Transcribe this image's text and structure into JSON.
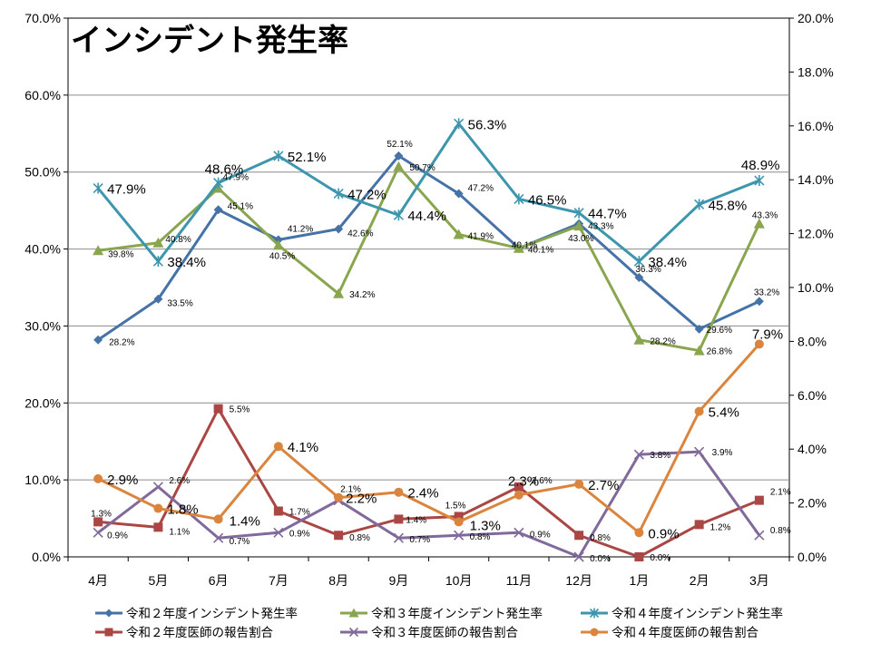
{
  "chart_data": {
    "type": "line",
    "title": "インシデント発生率",
    "categories": [
      "4月",
      "5月",
      "6月",
      "7月",
      "8月",
      "9月",
      "10月",
      "11月",
      "12月",
      "1月",
      "2月",
      "3月"
    ],
    "ylim": [
      0,
      70
    ],
    "y2lim": [
      0,
      20
    ],
    "yticks": [
      "0.0%",
      "10.0%",
      "20.0%",
      "30.0%",
      "40.0%",
      "50.0%",
      "60.0%",
      "70.0%"
    ],
    "y2ticks": [
      "0.0%",
      "2.0%",
      "4.0%",
      "6.0%",
      "8.0%",
      "10.0%",
      "12.0%",
      "14.0%",
      "16.0%",
      "18.0%",
      "20.0%"
    ],
    "grid": true,
    "legend_position": "bottom",
    "series": [
      {
        "name": "令和２年度インシデント発生率",
        "axis": "left",
        "color": "#4572A7",
        "marker": "diamond",
        "values": [
          28.2,
          33.5,
          45.1,
          41.2,
          42.6,
          52.1,
          47.2,
          40.1,
          43.3,
          36.3,
          29.6,
          33.2
        ],
        "labels": [
          "28.2%",
          "33.5%",
          "45.1%",
          "41.2%",
          "42.6%",
          "52.1%",
          "47.2%",
          "40.1%",
          "43.3%",
          "36.3%",
          "29.6%",
          "33.2%"
        ]
      },
      {
        "name": "令和３年度インシデント発生率",
        "axis": "left",
        "color": "#89A54E",
        "marker": "triangle",
        "values": [
          39.8,
          40.8,
          47.9,
          40.5,
          34.2,
          50.7,
          41.9,
          40.1,
          43.0,
          28.2,
          26.8,
          43.3
        ],
        "labels": [
          "39.8%",
          "40.8%",
          "47.9%",
          "40.5%",
          "34.2%",
          "50.7%",
          "41.9%",
          "40.1%",
          "43.0%",
          "28.2%",
          "26.8%",
          "43.3%"
        ]
      },
      {
        "name": "令和４年度インシデント発生率",
        "axis": "left",
        "color": "#3D96AE",
        "marker": "star",
        "values": [
          47.9,
          38.4,
          48.6,
          52.1,
          47.2,
          44.4,
          56.3,
          46.5,
          44.7,
          38.4,
          45.8,
          48.9
        ],
        "labels": [
          "47.9%",
          "38.4%",
          "48.6%",
          "52.1%",
          "47.2%",
          "44.4%",
          "56.3%",
          "46.5%",
          "44.7%",
          "38.4%",
          "45.8%",
          "48.9%"
        ]
      },
      {
        "name": "令和２年度医師の報告割合",
        "axis": "right",
        "color": "#AA4643",
        "marker": "square",
        "values": [
          1.3,
          1.1,
          5.5,
          1.7,
          0.8,
          1.4,
          1.5,
          2.6,
          0.8,
          0.0,
          1.2,
          2.1
        ],
        "labels": [
          "1.3%",
          "1.1%",
          "5.5%",
          "1.7%",
          "0.8%",
          "1.4%",
          "1.5%",
          "2.6%",
          "0.8%",
          "0.0%",
          "1.2%",
          "2.1%"
        ]
      },
      {
        "name": "令和３年度医師の報告割合",
        "axis": "right",
        "color": "#80699B",
        "marker": "x",
        "values": [
          0.9,
          2.6,
          0.7,
          0.9,
          2.1,
          0.7,
          0.8,
          0.9,
          0.0,
          3.8,
          3.9,
          0.8
        ],
        "labels": [
          "0.9%",
          "2.6%",
          "0.7%",
          "0.9%",
          "2.1%",
          "0.7%",
          "0.8%",
          "0.9%",
          "0.0%",
          "3.8%",
          "3.9%",
          "0.8%"
        ]
      },
      {
        "name": "令和４年度医師の報告割合",
        "axis": "right",
        "color": "#DB843D",
        "marker": "circle",
        "values": [
          2.9,
          1.8,
          1.4,
          4.1,
          2.2,
          2.4,
          1.3,
          2.3,
          2.7,
          0.9,
          5.4,
          7.9
        ],
        "labels": [
          "2.9%",
          "1.8%",
          "1.4%",
          "4.1%",
          "2.2%",
          "2.4%",
          "1.3%",
          "2.3%",
          "2.7%",
          "0.9%",
          "5.4%",
          "7.9%"
        ]
      }
    ]
  }
}
